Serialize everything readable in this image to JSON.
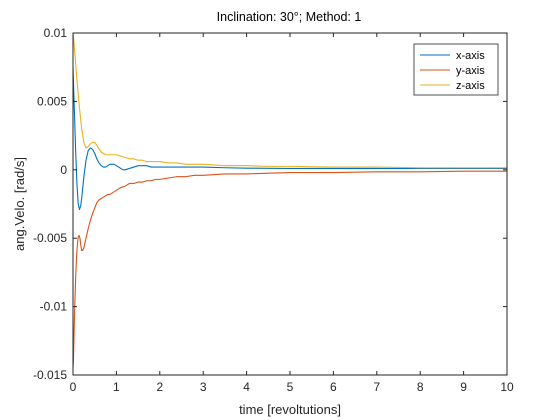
{
  "chart_data": {
    "type": "line",
    "title": "Inclination: 30°;   Method: 1",
    "xlabel": "time [revoltutions]",
    "ylabel": "ang.Velo. [rad/s]",
    "xlim": [
      0,
      10
    ],
    "ylim": [
      -0.015,
      0.01
    ],
    "xticks": [
      0,
      1,
      2,
      3,
      4,
      5,
      6,
      7,
      8,
      9,
      10
    ],
    "xtick_labels": [
      "0",
      "1",
      "2",
      "3",
      "4",
      "5",
      "6",
      "7",
      "8",
      "9",
      "10"
    ],
    "yticks": [
      -0.015,
      -0.01,
      -0.005,
      0,
      0.005,
      0.01
    ],
    "ytick_labels": [
      "-0.015",
      "-0.01",
      "-0.005",
      "0",
      "0.005",
      "0.01"
    ],
    "grid": false,
    "legend_position": "top-right",
    "series": [
      {
        "name": "x-axis",
        "color": "#0072BD",
        "x": [
          0,
          0.03,
          0.06,
          0.09,
          0.12,
          0.15,
          0.18,
          0.21,
          0.25,
          0.3,
          0.35,
          0.4,
          0.45,
          0.5,
          0.55,
          0.6,
          0.65,
          0.7,
          0.75,
          0.8,
          0.85,
          0.9,
          0.95,
          1.0,
          1.05,
          1.1,
          1.15,
          1.2,
          1.3,
          1.4,
          1.5,
          1.6,
          1.7,
          1.8,
          1.9,
          2.0,
          2.2,
          2.4,
          2.6,
          2.8,
          3.0,
          3.5,
          4,
          5,
          6,
          7,
          8,
          9,
          10
        ],
        "y": [
          0.0075,
          0.0045,
          0.0015,
          -0.001,
          -0.0025,
          -0.0029,
          -0.0026,
          -0.0018,
          -0.0005,
          0.0007,
          0.0014,
          0.0016,
          0.0015,
          0.0012,
          0.0008,
          0.0005,
          0.0003,
          0.0002,
          0.0002,
          0.0003,
          0.0004,
          0.0004,
          0.0004,
          0.0003,
          0.0002,
          0.0001,
          0.0,
          0.0,
          0.0001,
          0.0002,
          0.0003,
          0.0003,
          0.0003,
          0.0002,
          0.0002,
          0.0002,
          0.0002,
          0.0002,
          0.0002,
          0.0002,
          0.0002,
          0.00015,
          0.00012,
          0.0001,
          0.0001,
          0.0001,
          0.0001,
          0.0001,
          0.0001
        ]
      },
      {
        "name": "y-axis",
        "color": "#D95319",
        "x": [
          0,
          0.01,
          0.02,
          0.04,
          0.06,
          0.08,
          0.1,
          0.12,
          0.14,
          0.16,
          0.18,
          0.2,
          0.22,
          0.25,
          0.3,
          0.35,
          0.4,
          0.45,
          0.5,
          0.55,
          0.6,
          0.65,
          0.7,
          0.75,
          0.8,
          0.85,
          0.9,
          0.95,
          1.0,
          1.05,
          1.1,
          1.2,
          1.3,
          1.4,
          1.5,
          1.6,
          1.7,
          1.8,
          1.9,
          2.0,
          2.2,
          2.4,
          2.6,
          2.8,
          3.0,
          3.5,
          4,
          4.5,
          5,
          6,
          7,
          8,
          9,
          10
        ],
        "y": [
          -0.0145,
          -0.014,
          -0.0125,
          -0.01,
          -0.008,
          -0.0065,
          -0.0055,
          -0.0049,
          -0.0048,
          -0.005,
          -0.0055,
          -0.0059,
          -0.0059,
          -0.0057,
          -0.005,
          -0.0043,
          -0.0037,
          -0.0032,
          -0.0028,
          -0.0024,
          -0.0022,
          -0.0021,
          -0.002,
          -0.0019,
          -0.0018,
          -0.0018,
          -0.0017,
          -0.0016,
          -0.0015,
          -0.0014,
          -0.0013,
          -0.0012,
          -0.001,
          -0.001,
          -0.0009,
          -0.0009,
          -0.0008,
          -0.0008,
          -0.0007,
          -0.0007,
          -0.0006,
          -0.0005,
          -0.0005,
          -0.0004,
          -0.0004,
          -0.0003,
          -0.0003,
          -0.00025,
          -0.0002,
          -0.0002,
          -0.00015,
          -0.00015,
          -0.0001,
          -0.0001
        ]
      },
      {
        "name": "z-axis",
        "color": "#EDB120",
        "x": [
          0,
          0.02,
          0.05,
          0.08,
          0.1,
          0.15,
          0.2,
          0.25,
          0.3,
          0.35,
          0.4,
          0.45,
          0.5,
          0.55,
          0.6,
          0.65,
          0.7,
          0.75,
          0.8,
          0.9,
          1.0,
          1.1,
          1.2,
          1.3,
          1.4,
          1.5,
          1.6,
          1.7,
          1.8,
          1.9,
          2.0,
          2.2,
          2.4,
          2.6,
          2.8,
          3.0,
          3.5,
          4,
          4.5,
          5,
          6,
          7,
          8,
          9,
          10
        ],
        "y": [
          0.01,
          0.0094,
          0.0082,
          0.007,
          0.0062,
          0.0045,
          0.003,
          0.002,
          0.0016,
          0.0017,
          0.0019,
          0.002,
          0.002,
          0.0018,
          0.0015,
          0.0013,
          0.0012,
          0.0011,
          0.0011,
          0.0011,
          0.0011,
          0.001,
          0.0009,
          0.0008,
          0.0008,
          0.0007,
          0.0007,
          0.0006,
          0.0006,
          0.0006,
          0.0006,
          0.0005,
          0.0005,
          0.0004,
          0.0004,
          0.0004,
          0.0003,
          0.0003,
          0.00025,
          0.00025,
          0.0002,
          0.0002,
          0.00015,
          0.00015,
          0.00015
        ]
      }
    ]
  }
}
